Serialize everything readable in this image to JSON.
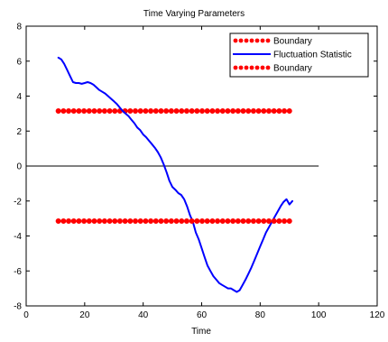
{
  "chart_data": {
    "type": "line",
    "title": "Time Varying Parameters",
    "xlabel": "Time",
    "ylabel": "",
    "xlim": [
      0,
      120
    ],
    "ylim": [
      -8,
      8
    ],
    "xticks": [
      0,
      20,
      40,
      60,
      80,
      100,
      120
    ],
    "yticks": [
      -8,
      -6,
      -4,
      -2,
      0,
      2,
      4,
      6,
      8
    ],
    "grid": false,
    "legend_position": "top-right",
    "reference_line": {
      "y": 0,
      "x_start": 0,
      "x_end": 100,
      "color": "#000000"
    },
    "series": [
      {
        "name": "Boundary",
        "style": "dotted-markers",
        "color": "#ff0000",
        "x": [
          11,
          90
        ],
        "y": [
          3.15,
          3.15
        ],
        "marker_count": 46
      },
      {
        "name": "Fluctuation Statistic",
        "style": "line",
        "color": "#0000ff",
        "x": [
          11,
          12,
          13,
          14,
          15,
          16,
          17,
          18,
          19,
          20,
          21,
          22,
          23,
          24,
          25,
          26,
          27,
          28,
          29,
          30,
          31,
          32,
          33,
          34,
          35,
          36,
          37,
          38,
          39,
          40,
          41,
          42,
          43,
          44,
          45,
          46,
          47,
          48,
          49,
          50,
          51,
          52,
          53,
          54,
          55,
          56,
          57,
          58,
          59,
          60,
          61,
          62,
          63,
          64,
          65,
          66,
          67,
          68,
          69,
          70,
          71,
          72,
          73,
          74,
          75,
          76,
          77,
          78,
          79,
          80,
          81,
          82,
          83,
          84,
          85,
          86,
          87,
          88,
          89,
          90,
          91
        ],
        "y": [
          6.2,
          6.1,
          5.85,
          5.5,
          5.15,
          4.8,
          4.75,
          4.75,
          4.7,
          4.75,
          4.8,
          4.75,
          4.65,
          4.5,
          4.35,
          4.25,
          4.15,
          4.0,
          3.85,
          3.7,
          3.55,
          3.35,
          3.15,
          3.0,
          2.85,
          2.65,
          2.45,
          2.2,
          2.05,
          1.8,
          1.65,
          1.45,
          1.25,
          1.05,
          0.8,
          0.5,
          0.1,
          -0.35,
          -0.85,
          -1.2,
          -1.35,
          -1.55,
          -1.65,
          -1.9,
          -2.3,
          -2.8,
          -3.2,
          -3.8,
          -4.2,
          -4.7,
          -5.2,
          -5.7,
          -6.0,
          -6.3,
          -6.5,
          -6.7,
          -6.8,
          -6.9,
          -7.0,
          -7.0,
          -7.1,
          -7.2,
          -7.1,
          -6.8,
          -6.5,
          -6.15,
          -5.8,
          -5.4,
          -5.0,
          -4.6,
          -4.2,
          -3.8,
          -3.5,
          -3.2,
          -2.9,
          -2.6,
          -2.3,
          -2.05,
          -1.9,
          -2.2,
          -2.0
        ],
        "visible_range": [
          11,
          91
        ]
      },
      {
        "name": "Boundary",
        "style": "dotted-markers",
        "color": "#ff0000",
        "x": [
          11,
          90
        ],
        "y": [
          -3.15,
          -3.15
        ],
        "marker_count": 46
      }
    ]
  }
}
